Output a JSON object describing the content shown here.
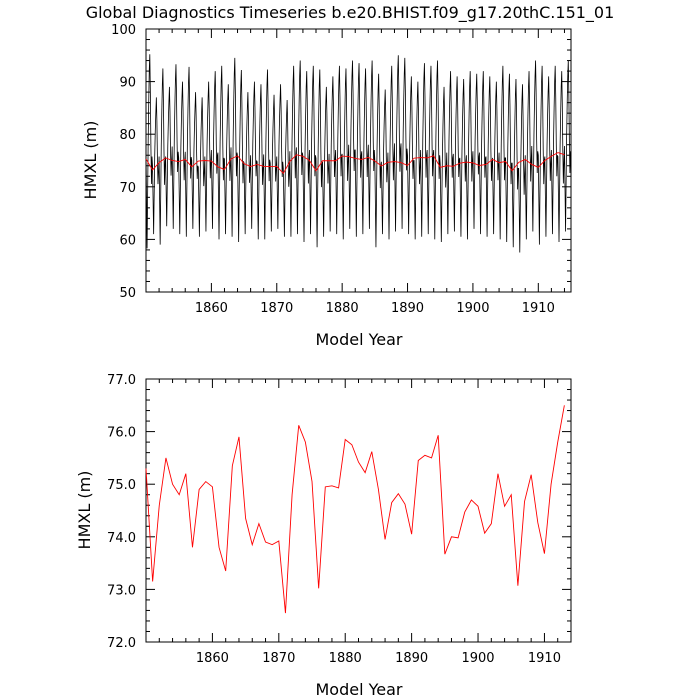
{
  "title": "Global Diagnostics Timeseries b.e20.BHIST.f09_g17.20thC.151_01",
  "colors": {
    "monthly": "#000000",
    "annual": "#ff0000"
  },
  "chart_data": [
    {
      "type": "line",
      "xlabel": "Model Year",
      "ylabel": "HMXL (m)",
      "xlim": [
        1850,
        1915
      ],
      "ylim": [
        50,
        100
      ],
      "x_ticks": [
        "1860",
        "1870",
        "1880",
        "1890",
        "1900",
        "1910"
      ],
      "y_ticks": [
        "50",
        "60",
        "70",
        "80",
        "90",
        "100"
      ],
      "grid": false,
      "series": [
        {
          "style": "monthly",
          "peaks": [
            95.2,
            87.0,
            92.5,
            89.0,
            93.3,
            90.0,
            92.8,
            88.0,
            87.0,
            90.0,
            92.0,
            93.0,
            89.5,
            94.5,
            92.2,
            88.0,
            90.0,
            89.5,
            92.3,
            87.5,
            89.5,
            86.5,
            93.0,
            94.0,
            92.0,
            93.0,
            92.3,
            89.0,
            91.0,
            93.0,
            92.5,
            94.0,
            93.5,
            92.5,
            94.0,
            91.5,
            88.5,
            93.0,
            95.0,
            94.5,
            91.0,
            90.0,
            93.5,
            93.0,
            94.0,
            89.0,
            92.0,
            91.0,
            90.5,
            92.0,
            91.5,
            92.0,
            91.0,
            90.0,
            93.0,
            91.5,
            90.5,
            89.5,
            92.0,
            94.0,
            93.0,
            91.0,
            93.0,
            92.0,
            94.0
          ],
          "troughs": [
            58.3,
            61.0,
            59.0,
            62.5,
            62.0,
            61.0,
            60.5,
            62.0,
            60.5,
            61.5,
            62.0,
            60.0,
            61.0,
            60.5,
            59.5,
            61.0,
            62.0,
            60.0,
            60.0,
            61.5,
            62.0,
            60.5,
            60.5,
            61.0,
            59.5,
            61.0,
            58.5,
            60.5,
            61.5,
            61.0,
            60.0,
            62.0,
            60.5,
            61.0,
            62.0,
            58.5,
            61.0,
            60.0,
            61.5,
            62.0,
            61.0,
            60.0,
            60.5,
            61.0,
            60.0,
            59.5,
            61.0,
            61.5,
            60.5,
            60.0,
            62.0,
            61.0,
            60.5,
            61.0,
            60.0,
            59.5,
            58.5,
            57.5,
            60.0,
            61.5,
            59.0,
            60.5,
            61.0,
            59.5,
            61.5
          ]
        },
        {
          "style": "annual",
          "x": [
            1850,
            1851,
            1852,
            1853,
            1854,
            1855,
            1856,
            1857,
            1858,
            1859,
            1860,
            1861,
            1862,
            1863,
            1864,
            1865,
            1866,
            1867,
            1868,
            1869,
            1870,
            1871,
            1872,
            1873,
            1874,
            1875,
            1876,
            1877,
            1878,
            1879,
            1880,
            1881,
            1882,
            1883,
            1884,
            1885,
            1886,
            1887,
            1888,
            1889,
            1890,
            1891,
            1892,
            1893,
            1894,
            1895,
            1896,
            1897,
            1898,
            1899,
            1900,
            1901,
            1902,
            1903,
            1904,
            1905,
            1906,
            1907,
            1908,
            1909,
            1910,
            1911,
            1912,
            1913,
            1914
          ],
          "y": [
            75.3,
            73.2,
            74.6,
            75.5,
            75.0,
            74.8,
            75.2,
            73.8,
            74.9,
            75.0,
            74.9,
            73.8,
            73.3,
            75.3,
            75.9,
            74.4,
            73.85,
            74.25,
            73.9,
            73.85,
            73.9,
            72.55,
            74.8,
            76.1,
            75.8,
            75.0,
            73.05,
            74.95,
            74.95,
            74.95,
            75.85,
            75.75,
            75.4,
            75.2,
            75.6,
            74.9,
            73.95,
            74.65,
            74.8,
            74.6,
            74.05,
            75.45,
            75.55,
            75.5,
            75.9,
            73.7,
            74.0,
            73.9,
            74.5,
            74.7,
            74.55,
            74.05,
            74.25,
            75.2,
            74.6,
            74.8,
            73.05,
            74.65,
            75.2,
            74.25,
            73.7,
            75.0,
            75.8,
            76.5,
            76.1
          ]
        }
      ]
    },
    {
      "type": "line",
      "xlabel": "Model Year",
      "ylabel": "HMXL (m)",
      "xlim": [
        1850,
        1914
      ],
      "ylim": [
        72.0,
        77.0
      ],
      "x_ticks": [
        "1860",
        "1870",
        "1880",
        "1890",
        "1900",
        "1910"
      ],
      "y_ticks": [
        "72.0",
        "73.0",
        "74.0",
        "75.0",
        "76.0",
        "77.0"
      ],
      "grid": false,
      "series": [
        {
          "style": "annual",
          "x": [
            1850,
            1851,
            1852,
            1853,
            1854,
            1855,
            1856,
            1857,
            1858,
            1859,
            1860,
            1861,
            1862,
            1863,
            1864,
            1865,
            1866,
            1867,
            1868,
            1869,
            1870,
            1871,
            1872,
            1873,
            1874,
            1875,
            1876,
            1877,
            1878,
            1879,
            1880,
            1881,
            1882,
            1883,
            1884,
            1885,
            1886,
            1887,
            1888,
            1889,
            1890,
            1891,
            1892,
            1893,
            1894,
            1895,
            1896,
            1897,
            1898,
            1899,
            1900,
            1901,
            1902,
            1903,
            1904,
            1905,
            1906,
            1907,
            1908,
            1909,
            1910,
            1911,
            1912,
            1913
          ],
          "y": [
            75.3,
            73.15,
            74.6,
            75.5,
            75.0,
            74.8,
            75.2,
            73.8,
            74.9,
            75.05,
            74.95,
            73.8,
            73.35,
            75.35,
            75.9,
            74.35,
            73.85,
            74.25,
            73.9,
            73.85,
            73.92,
            72.55,
            74.8,
            76.12,
            75.8,
            75.05,
            73.02,
            74.95,
            74.97,
            74.93,
            75.85,
            75.75,
            75.42,
            75.22,
            75.62,
            74.9,
            73.95,
            74.65,
            74.82,
            74.62,
            74.05,
            75.45,
            75.55,
            75.5,
            75.93,
            73.67,
            74.0,
            73.98,
            74.47,
            74.7,
            74.58,
            74.07,
            74.25,
            75.2,
            74.58,
            74.8,
            73.07,
            74.67,
            75.18,
            74.27,
            73.68,
            75.0,
            75.8,
            76.5
          ]
        }
      ]
    }
  ]
}
